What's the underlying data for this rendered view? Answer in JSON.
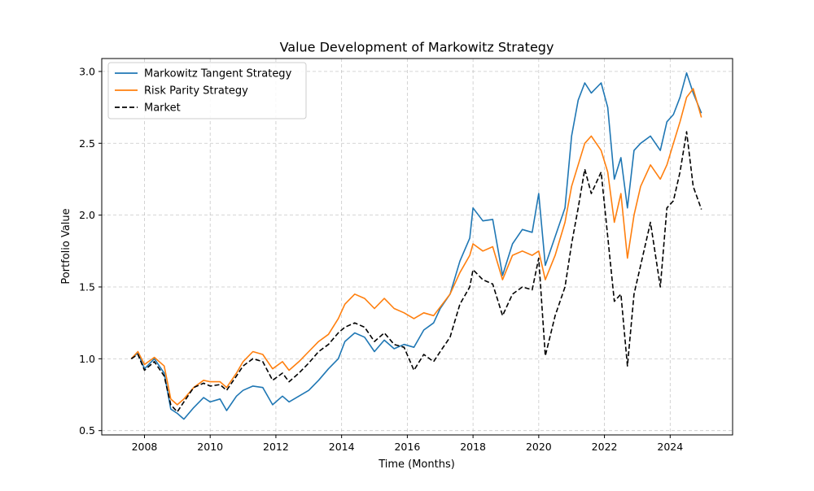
{
  "chart_data": {
    "type": "line",
    "title": "Value Development of Markowitz Strategy",
    "xlabel": "Time (Months)",
    "ylabel": "Portfolio Value",
    "xlim": [
      2006.7,
      2025.9
    ],
    "ylim": [
      0.47,
      3.09
    ],
    "xticks": [
      2008,
      2010,
      2012,
      2014,
      2016,
      2018,
      2020,
      2022,
      2024
    ],
    "yticks": [
      0.5,
      1.0,
      1.5,
      2.0,
      2.5,
      3.0
    ],
    "xtick_labels": [
      "2008",
      "2010",
      "2012",
      "2014",
      "2016",
      "2018",
      "2020",
      "2022",
      "2024"
    ],
    "ytick_labels": [
      "0.5",
      "1.0",
      "1.5",
      "2.0",
      "2.5",
      "3.0"
    ],
    "grid": true,
    "legend_position": "top-left",
    "series": [
      {
        "name": "Markowitz Tangent Strategy",
        "color": "#1f77b4",
        "style": "solid",
        "x": [
          2007.6,
          2007.8,
          2008.0,
          2008.3,
          2008.6,
          2008.8,
          2009.0,
          2009.2,
          2009.5,
          2009.8,
          2010.0,
          2010.3,
          2010.5,
          2010.8,
          2011.0,
          2011.3,
          2011.6,
          2011.9,
          2012.2,
          2012.4,
          2012.7,
          2013.0,
          2013.3,
          2013.6,
          2013.9,
          2014.1,
          2014.4,
          2014.7,
          2015.0,
          2015.3,
          2015.6,
          2015.9,
          2016.2,
          2016.5,
          2016.8,
          2017.0,
          2017.3,
          2017.6,
          2017.9,
          2018.0,
          2018.3,
          2018.6,
          2018.9,
          2019.2,
          2019.5,
          2019.8,
          2020.0,
          2020.2,
          2020.5,
          2020.8,
          2021.0,
          2021.2,
          2021.4,
          2021.6,
          2021.9,
          2022.1,
          2022.3,
          2022.5,
          2022.7,
          2022.9,
          2023.1,
          2023.4,
          2023.7,
          2023.9,
          2024.1,
          2024.3,
          2024.5,
          2024.7,
          2024.95
        ],
        "values": [
          1.0,
          1.04,
          0.93,
          1.0,
          0.9,
          0.65,
          0.62,
          0.58,
          0.66,
          0.73,
          0.7,
          0.72,
          0.64,
          0.74,
          0.78,
          0.81,
          0.8,
          0.68,
          0.74,
          0.7,
          0.74,
          0.78,
          0.85,
          0.93,
          1.0,
          1.12,
          1.18,
          1.15,
          1.05,
          1.13,
          1.07,
          1.1,
          1.08,
          1.2,
          1.25,
          1.35,
          1.45,
          1.68,
          1.84,
          2.05,
          1.96,
          1.97,
          1.58,
          1.8,
          1.9,
          1.88,
          2.15,
          1.65,
          1.85,
          2.05,
          2.55,
          2.8,
          2.92,
          2.85,
          2.92,
          2.75,
          2.25,
          2.4,
          2.05,
          2.45,
          2.5,
          2.55,
          2.45,
          2.65,
          2.7,
          2.82,
          2.99,
          2.85,
          2.71
        ]
      },
      {
        "name": "Risk Parity Strategy",
        "color": "#ff7f0e",
        "style": "solid",
        "x": [
          2007.6,
          2007.8,
          2008.0,
          2008.3,
          2008.6,
          2008.8,
          2009.0,
          2009.2,
          2009.5,
          2009.8,
          2010.0,
          2010.3,
          2010.5,
          2010.8,
          2011.0,
          2011.3,
          2011.6,
          2011.9,
          2012.2,
          2012.4,
          2012.7,
          2013.0,
          2013.3,
          2013.6,
          2013.9,
          2014.1,
          2014.4,
          2014.7,
          2015.0,
          2015.3,
          2015.6,
          2015.9,
          2016.2,
          2016.5,
          2016.8,
          2017.0,
          2017.3,
          2017.6,
          2017.9,
          2018.0,
          2018.3,
          2018.6,
          2018.9,
          2019.2,
          2019.5,
          2019.8,
          2020.0,
          2020.2,
          2020.5,
          2020.8,
          2021.0,
          2021.2,
          2021.4,
          2021.6,
          2021.9,
          2022.1,
          2022.3,
          2022.5,
          2022.7,
          2022.9,
          2023.1,
          2023.4,
          2023.7,
          2023.9,
          2024.1,
          2024.3,
          2024.5,
          2024.7,
          2024.95
        ],
        "values": [
          1.0,
          1.05,
          0.96,
          1.01,
          0.95,
          0.72,
          0.68,
          0.72,
          0.8,
          0.85,
          0.84,
          0.84,
          0.8,
          0.9,
          0.98,
          1.05,
          1.03,
          0.93,
          0.98,
          0.92,
          0.98,
          1.05,
          1.12,
          1.17,
          1.28,
          1.38,
          1.45,
          1.42,
          1.35,
          1.42,
          1.35,
          1.32,
          1.28,
          1.32,
          1.3,
          1.36,
          1.45,
          1.6,
          1.72,
          1.8,
          1.75,
          1.78,
          1.55,
          1.72,
          1.75,
          1.72,
          1.75,
          1.55,
          1.72,
          1.95,
          2.2,
          2.35,
          2.5,
          2.55,
          2.45,
          2.3,
          1.95,
          2.15,
          1.7,
          2.0,
          2.2,
          2.35,
          2.25,
          2.35,
          2.5,
          2.65,
          2.82,
          2.88,
          2.68
        ]
      },
      {
        "name": "Market",
        "color": "#000000",
        "style": "dashed",
        "x": [
          2007.6,
          2007.8,
          2008.0,
          2008.3,
          2008.6,
          2008.8,
          2009.0,
          2009.2,
          2009.5,
          2009.8,
          2010.0,
          2010.3,
          2010.5,
          2010.8,
          2011.0,
          2011.3,
          2011.6,
          2011.9,
          2012.2,
          2012.4,
          2012.7,
          2013.0,
          2013.3,
          2013.6,
          2013.9,
          2014.1,
          2014.4,
          2014.7,
          2015.0,
          2015.3,
          2015.6,
          2015.9,
          2016.2,
          2016.5,
          2016.8,
          2017.0,
          2017.3,
          2017.6,
          2017.9,
          2018.0,
          2018.3,
          2018.6,
          2018.9,
          2019.2,
          2019.5,
          2019.8,
          2020.0,
          2020.2,
          2020.5,
          2020.8,
          2021.0,
          2021.2,
          2021.4,
          2021.6,
          2021.9,
          2022.1,
          2022.3,
          2022.5,
          2022.7,
          2022.9,
          2023.1,
          2023.4,
          2023.7,
          2023.9,
          2024.1,
          2024.3,
          2024.5,
          2024.7,
          2024.95
        ],
        "values": [
          1.0,
          1.03,
          0.92,
          0.98,
          0.88,
          0.68,
          0.63,
          0.7,
          0.8,
          0.83,
          0.81,
          0.82,
          0.78,
          0.88,
          0.95,
          1.0,
          0.98,
          0.85,
          0.9,
          0.84,
          0.9,
          0.97,
          1.05,
          1.1,
          1.18,
          1.22,
          1.25,
          1.22,
          1.12,
          1.18,
          1.1,
          1.08,
          0.92,
          1.03,
          0.98,
          1.05,
          1.15,
          1.38,
          1.5,
          1.62,
          1.55,
          1.52,
          1.3,
          1.45,
          1.5,
          1.48,
          1.7,
          1.02,
          1.3,
          1.5,
          1.8,
          2.05,
          2.32,
          2.15,
          2.3,
          1.85,
          1.4,
          1.45,
          0.95,
          1.45,
          1.65,
          1.95,
          1.5,
          2.05,
          2.1,
          2.3,
          2.58,
          2.2,
          2.04
        ]
      }
    ]
  }
}
